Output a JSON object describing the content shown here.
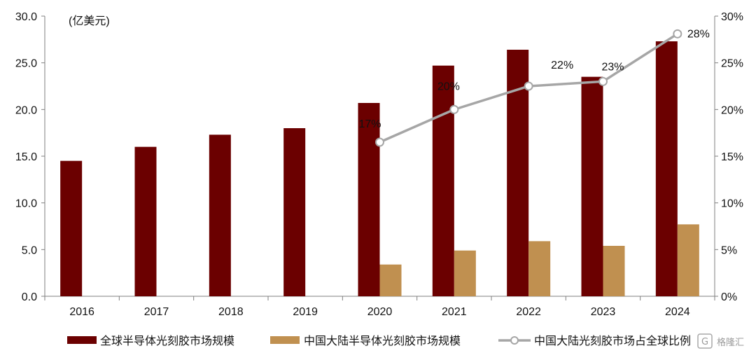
{
  "chart_data": {
    "type": "bar",
    "unit_label": "(亿美元)",
    "categories": [
      "2016",
      "2017",
      "2018",
      "2019",
      "2020",
      "2021",
      "2022",
      "2023",
      "2024"
    ],
    "series": [
      {
        "name": "全球半导体光刻胶市场规模",
        "type": "bar",
        "axis": "left",
        "color": "#6b0000",
        "values": [
          14.5,
          16.0,
          17.3,
          18.0,
          20.7,
          24.7,
          26.4,
          23.5,
          27.3
        ]
      },
      {
        "name": "中国大陆半导体光刻胶市场规模",
        "type": "bar",
        "axis": "left",
        "color": "#c09050",
        "values": [
          null,
          null,
          null,
          null,
          3.4,
          4.9,
          5.9,
          5.4,
          7.7
        ]
      },
      {
        "name": "中国大陆光刻胶市场占全球比例",
        "type": "line",
        "axis": "right",
        "color": "#a6a6a6",
        "values": [
          null,
          null,
          null,
          null,
          16.5,
          20.0,
          22.5,
          23.0,
          28.1
        ],
        "data_labels": [
          null,
          null,
          null,
          null,
          "17%",
          "20%",
          "22%",
          "23%",
          "28%"
        ]
      }
    ],
    "y_left": {
      "ylim": [
        0,
        30
      ],
      "ticks": [
        "0.0",
        "5.0",
        "10.0",
        "15.0",
        "20.0",
        "25.0",
        "30.0"
      ]
    },
    "y_right": {
      "ylim": [
        0,
        30
      ],
      "ticks": [
        "0%",
        "5%",
        "10%",
        "15%",
        "20%",
        "25%",
        "30%"
      ]
    },
    "grid": false,
    "legend_position": "bottom"
  },
  "watermark": "格隆汇"
}
